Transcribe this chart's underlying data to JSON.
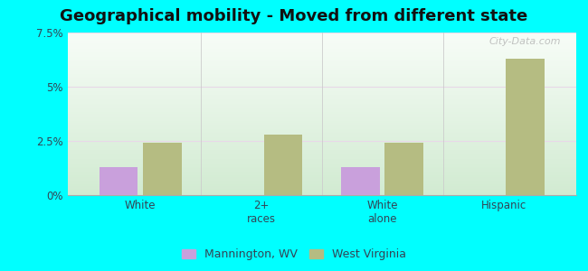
{
  "title": "Geographical mobility - Moved from different state",
  "categories": [
    "White",
    "2+\nraces",
    "White\nalone",
    "Hispanic"
  ],
  "mannington_values": [
    1.3,
    0.0,
    1.3,
    0.0
  ],
  "wv_values": [
    2.4,
    2.8,
    2.4,
    6.3
  ],
  "mannington_color": "#c9a0dc",
  "wv_color": "#b5bc82",
  "ylim": [
    0,
    7.5
  ],
  "yticks": [
    0,
    2.5,
    5.0,
    7.5
  ],
  "ytick_labels": [
    "0%",
    "2.5%",
    "5%",
    "7.5%"
  ],
  "outer_bg": "#00ffff",
  "legend_mannington": "Mannington, WV",
  "legend_wv": "West Virginia",
  "bar_width": 0.32,
  "title_fontsize": 13,
  "watermark": "City-Data.com"
}
